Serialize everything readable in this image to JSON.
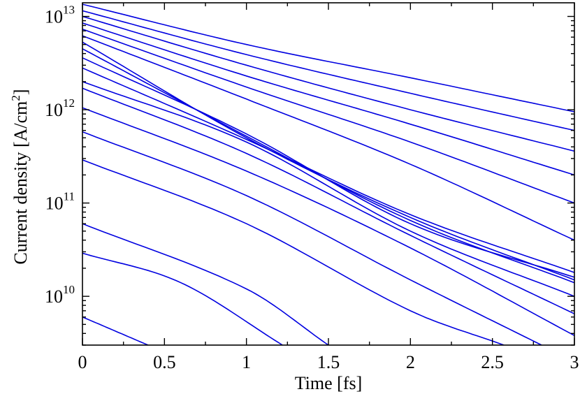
{
  "chart_data": {
    "type": "line",
    "xlabel": "Time [fs]",
    "ylabel_main": "Current density [A/cm",
    "ylabel_sup": "2",
    "ylabel_close": "]",
    "y_scale": "log",
    "xlim": [
      0,
      3
    ],
    "ylim": [
      3000000000.0,
      14000000000000.0
    ],
    "grid": false,
    "line_color": "#0000e0",
    "x_ticks": [
      {
        "value": 0,
        "label": "0"
      },
      {
        "value": 0.5,
        "label": "0.5"
      },
      {
        "value": 1,
        "label": "1"
      },
      {
        "value": 1.5,
        "label": "1.5"
      },
      {
        "value": 2,
        "label": "2"
      },
      {
        "value": 2.5,
        "label": "2.5"
      },
      {
        "value": 3,
        "label": "3"
      }
    ],
    "y_ticks": [
      {
        "value": 10000000000.0,
        "base": "10",
        "exp": "10"
      },
      {
        "value": 100000000000.0,
        "base": "10",
        "exp": "11"
      },
      {
        "value": 1000000000000.0,
        "base": "10",
        "exp": "12"
      },
      {
        "value": 10000000000000.0,
        "base": "10",
        "exp": "13"
      }
    ],
    "series": [
      {
        "x": [
          0,
          1,
          2,
          3
        ],
        "y": [
          13500000000000.0,
          5000000000000.0,
          2200000000000.0,
          950000000000.0
        ]
      },
      {
        "x": [
          0,
          1,
          2,
          3
        ],
        "y": [
          11500000000000.0,
          3900000000000.0,
          1500000000000.0,
          600000000000.0
        ]
      },
      {
        "x": [
          0,
          1,
          2,
          3
        ],
        "y": [
          10000000000000.0,
          3000000000000.0,
          1000000000000.0,
          360000000000.0
        ]
      },
      {
        "x": [
          0,
          1,
          2,
          3
        ],
        "y": [
          8500000000000.0,
          2300000000000.0,
          700000000000.0,
          200000000000.0
        ]
      },
      {
        "x": [
          0,
          1,
          2,
          3
        ],
        "y": [
          7300000000000.0,
          1750000000000.0,
          450000000000.0,
          100000000000.0
        ]
      },
      {
        "x": [
          0,
          1,
          2,
          3
        ],
        "y": [
          6200000000000.0,
          1300000000000.0,
          260000000000.0,
          40000000000.0
        ]
      },
      {
        "x": [
          0,
          1,
          2,
          3
        ],
        "y": [
          5300000000000.0,
          500000000000.0,
          70000000000.0,
          15000000000.0
        ]
      },
      {
        "x": [
          0,
          1,
          2,
          3
        ],
        "y": [
          4500000000000.0,
          520000000000.0,
          65000000000.0,
          14000000000.0
        ]
      },
      {
        "x": [
          0,
          1,
          2,
          3
        ],
        "y": [
          3600000000000.0,
          550000000000.0,
          60000000000.0,
          16000000000.0
        ]
      },
      {
        "x": [
          0,
          1,
          2,
          3
        ],
        "y": [
          2800000000000.0,
          480000000000.0,
          75000000000.0,
          18000000000.0
        ]
      },
      {
        "x": [
          0,
          1,
          2,
          3
        ],
        "y": [
          2000000000000.0,
          450000000000.0,
          50000000000.0,
          10000000000.0
        ]
      },
      {
        "x": [
          0,
          1,
          2,
          3
        ],
        "y": [
          1700000000000.0,
          340000000000.0,
          45000000000.0,
          6500000000.0
        ]
      },
      {
        "x": [
          0,
          1,
          2,
          3
        ],
        "y": [
          1050000000000.0,
          220000000000.0,
          33000000000.0,
          3800000000.0
        ]
      },
      {
        "x": [
          0,
          1,
          2,
          2.8
        ],
        "y": [
          580000000000.0,
          120000000000.0,
          15000000000.0,
          3000000000.0
        ]
      },
      {
        "x": [
          0,
          1,
          2,
          2.57
        ],
        "y": [
          290000000000.0,
          60000000000.0,
          7000000000.0,
          3000000000.0
        ]
      },
      {
        "x": [
          0,
          1,
          1.5
        ],
        "y": [
          60000000000.0,
          12000000000.0,
          3000000000.0
        ]
      },
      {
        "x": [
          0,
          0.6,
          1.22
        ],
        "y": [
          29000000000.0,
          14000000000.0,
          3000000000.0
        ]
      },
      {
        "x": [
          0,
          0.4
        ],
        "y": [
          6000000000.0,
          3000000000.0
        ]
      }
    ]
  }
}
